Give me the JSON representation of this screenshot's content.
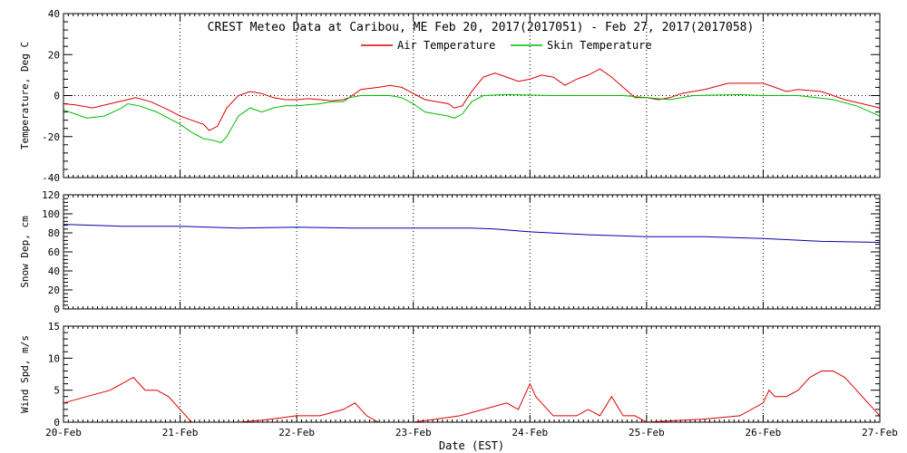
{
  "chart_data": {
    "type": "line",
    "title": "CREST Meteo Data at Caribou, ME   Feb 20, 2017(2017051) - Feb 27, 2017(2017058)",
    "xlabel": "Date (EST)",
    "x_ticks": [
      "20-Feb",
      "21-Feb",
      "22-Feb",
      "23-Feb",
      "24-Feb",
      "25-Feb",
      "26-Feb",
      "27-Feb"
    ],
    "x_unit": "day index (0 = 20-Feb 00:00)",
    "xlim": [
      0,
      7
    ],
    "grid": true,
    "panels": [
      {
        "ylabel": "Temperature, Deg C",
        "ylim": [
          -40,
          40
        ],
        "y_ticks": [
          -40,
          -20,
          0,
          20,
          40
        ],
        "legend_position": "top-center",
        "series": [
          {
            "name": "Air Temperature",
            "color": "#dd0000",
            "points": [
              [
                0,
                -4
              ],
              [
                0.1,
                -4.5
              ],
              [
                0.25,
                -6
              ],
              [
                0.4,
                -4
              ],
              [
                0.55,
                -2
              ],
              [
                0.62,
                -1
              ],
              [
                0.75,
                -3
              ],
              [
                0.9,
                -7
              ],
              [
                1.0,
                -10
              ],
              [
                1.1,
                -12
              ],
              [
                1.2,
                -14
              ],
              [
                1.25,
                -17
              ],
              [
                1.32,
                -15
              ],
              [
                1.4,
                -6
              ],
              [
                1.5,
                0
              ],
              [
                1.6,
                2
              ],
              [
                1.7,
                1
              ],
              [
                1.8,
                -1
              ],
              [
                1.9,
                -2
              ],
              [
                2.0,
                -2
              ],
              [
                2.1,
                -1.5
              ],
              [
                2.2,
                -2
              ],
              [
                2.3,
                -2.5
              ],
              [
                2.4,
                -2
              ],
              [
                2.45,
                -1
              ],
              [
                2.55,
                3
              ],
              [
                2.7,
                4
              ],
              [
                2.8,
                5
              ],
              [
                2.9,
                4
              ],
              [
                3.0,
                1
              ],
              [
                3.1,
                -2
              ],
              [
                3.2,
                -3
              ],
              [
                3.3,
                -4
              ],
              [
                3.35,
                -6
              ],
              [
                3.42,
                -5
              ],
              [
                3.5,
                2
              ],
              [
                3.6,
                9
              ],
              [
                3.7,
                11
              ],
              [
                3.8,
                9
              ],
              [
                3.9,
                7
              ],
              [
                4.0,
                8
              ],
              [
                4.1,
                10
              ],
              [
                4.2,
                9
              ],
              [
                4.3,
                5
              ],
              [
                4.4,
                8
              ],
              [
                4.5,
                10
              ],
              [
                4.6,
                13
              ],
              [
                4.7,
                9
              ],
              [
                4.8,
                4
              ],
              [
                4.9,
                -1
              ],
              [
                5.0,
                -1
              ],
              [
                5.1,
                -2
              ],
              [
                5.2,
                -1
              ],
              [
                5.3,
                1
              ],
              [
                5.5,
                3
              ],
              [
                5.7,
                6
              ],
              [
                5.85,
                6
              ],
              [
                6.0,
                6
              ],
              [
                6.1,
                4
              ],
              [
                6.2,
                2
              ],
              [
                6.3,
                3
              ],
              [
                6.5,
                2
              ],
              [
                6.7,
                -2
              ],
              [
                6.85,
                -4
              ],
              [
                7.0,
                -6
              ]
            ]
          },
          {
            "name": "Skin Temperature",
            "color": "#00bb00",
            "points": [
              [
                0,
                -7
              ],
              [
                0.1,
                -9
              ],
              [
                0.2,
                -11
              ],
              [
                0.35,
                -10
              ],
              [
                0.5,
                -6
              ],
              [
                0.55,
                -4
              ],
              [
                0.65,
                -5
              ],
              [
                0.8,
                -8
              ],
              [
                0.9,
                -11
              ],
              [
                1.0,
                -14
              ],
              [
                1.1,
                -18
              ],
              [
                1.2,
                -21
              ],
              [
                1.3,
                -22
              ],
              [
                1.35,
                -23
              ],
              [
                1.4,
                -20
              ],
              [
                1.5,
                -10
              ],
              [
                1.6,
                -6
              ],
              [
                1.7,
                -8
              ],
              [
                1.8,
                -6
              ],
              [
                1.9,
                -5
              ],
              [
                2.0,
                -5
              ],
              [
                2.2,
                -4
              ],
              [
                2.3,
                -3
              ],
              [
                2.4,
                -3
              ],
              [
                2.45,
                -1
              ],
              [
                2.55,
                0
              ],
              [
                2.8,
                0
              ],
              [
                2.9,
                -1
              ],
              [
                3.0,
                -4
              ],
              [
                3.1,
                -8
              ],
              [
                3.2,
                -9
              ],
              [
                3.3,
                -10
              ],
              [
                3.35,
                -11
              ],
              [
                3.42,
                -9
              ],
              [
                3.5,
                -3
              ],
              [
                3.6,
                0
              ],
              [
                3.8,
                0.5
              ],
              [
                4.2,
                0
              ],
              [
                4.5,
                0
              ],
              [
                4.8,
                0
              ],
              [
                5.0,
                -1
              ],
              [
                5.2,
                -2
              ],
              [
                5.4,
                0
              ],
              [
                5.8,
                0.5
              ],
              [
                6.0,
                0
              ],
              [
                6.3,
                0
              ],
              [
                6.6,
                -2
              ],
              [
                6.8,
                -5
              ],
              [
                7.0,
                -10
              ]
            ]
          }
        ]
      },
      {
        "ylabel": "Snow Dep, cm",
        "ylim": [
          0,
          120
        ],
        "y_ticks": [
          0,
          20,
          40,
          60,
          80,
          100,
          120
        ],
        "series": [
          {
            "name": "",
            "color": "#0000aa",
            "points": [
              [
                0,
                89
              ],
              [
                0.5,
                87
              ],
              [
                1.0,
                87
              ],
              [
                1.5,
                85
              ],
              [
                2.0,
                86
              ],
              [
                2.5,
                85
              ],
              [
                3.0,
                85
              ],
              [
                3.5,
                85
              ],
              [
                3.7,
                84
              ],
              [
                4.0,
                81
              ],
              [
                4.5,
                78
              ],
              [
                5.0,
                76
              ],
              [
                5.5,
                76
              ],
              [
                6.0,
                74
              ],
              [
                6.5,
                71
              ],
              [
                7.0,
                70
              ]
            ]
          }
        ]
      },
      {
        "ylabel": "Wind Spd, m/s",
        "ylim": [
          0,
          15
        ],
        "y_ticks": [
          0,
          5,
          10,
          15
        ],
        "series": [
          {
            "name": "",
            "color": "#dd0000",
            "points": [
              [
                0,
                3
              ],
              [
                0.2,
                4
              ],
              [
                0.4,
                5
              ],
              [
                0.5,
                6
              ],
              [
                0.6,
                7
              ],
              [
                0.7,
                5
              ],
              [
                0.8,
                5
              ],
              [
                0.9,
                4
              ],
              [
                1.0,
                2
              ],
              [
                1.05,
                1
              ],
              [
                1.1,
                0
              ],
              [
                1.3,
                0
              ],
              [
                1.5,
                0
              ],
              [
                1.7,
                0.3
              ],
              [
                2.0,
                1
              ],
              [
                2.2,
                1
              ],
              [
                2.4,
                2
              ],
              [
                2.5,
                3
              ],
              [
                2.6,
                1
              ],
              [
                2.7,
                0
              ],
              [
                3.0,
                0
              ],
              [
                3.2,
                0.5
              ],
              [
                3.4,
                1
              ],
              [
                3.6,
                2
              ],
              [
                3.8,
                3
              ],
              [
                3.9,
                2
              ],
              [
                4.0,
                6
              ],
              [
                4.05,
                4
              ],
              [
                4.1,
                3
              ],
              [
                4.2,
                1
              ],
              [
                4.4,
                1
              ],
              [
                4.5,
                2
              ],
              [
                4.6,
                1
              ],
              [
                4.7,
                4
              ],
              [
                4.8,
                1
              ],
              [
                4.9,
                1
              ],
              [
                5.0,
                0
              ],
              [
                5.5,
                0.5
              ],
              [
                5.8,
                1
              ],
              [
                6.0,
                3
              ],
              [
                6.05,
                5
              ],
              [
                6.1,
                4
              ],
              [
                6.2,
                4
              ],
              [
                6.3,
                5
              ],
              [
                6.4,
                7
              ],
              [
                6.5,
                8
              ],
              [
                6.6,
                8
              ],
              [
                6.7,
                7
              ],
              [
                6.8,
                5
              ],
              [
                6.9,
                3
              ],
              [
                7.0,
                1
              ]
            ]
          }
        ]
      }
    ]
  }
}
